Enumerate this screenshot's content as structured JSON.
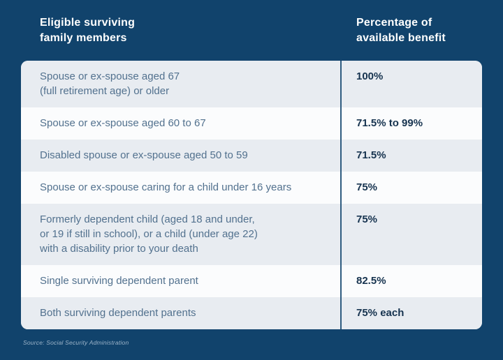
{
  "header": {
    "col1": "Eligible surviving\nfamily members",
    "col2": "Percentage of\navailable benefit"
  },
  "table": {
    "rows": [
      {
        "member": "Spouse or ex-spouse aged 67\n(full retirement age) or older",
        "benefit": "100%"
      },
      {
        "member": "Spouse or ex-spouse aged 60 to 67",
        "benefit": "71.5% to 99%"
      },
      {
        "member": "Disabled spouse or ex-spouse aged 50 to 59",
        "benefit": "71.5%"
      },
      {
        "member": "Spouse or ex-spouse caring for a child under 16 years",
        "benefit": "75%"
      },
      {
        "member": "Formerly dependent child (aged 18 and under,\nor 19 if still in school), or a child (under age 22)\nwith a disability prior to your death",
        "benefit": "75%"
      },
      {
        "member": "Single surviving dependent parent",
        "benefit": "82.5%"
      },
      {
        "member": "Both surviving dependent parents",
        "benefit": "75% each"
      }
    ]
  },
  "source": "Source: Social Security Administration",
  "colors": {
    "background_navy": "#11436C",
    "row_gray": "#E8ECF1",
    "row_white": "#FBFCFD",
    "column_divider": "#2F5C80",
    "member_text": "#52718E",
    "benefit_text": "#16334F",
    "header_text": "#FFFFFF",
    "source_text": "#9DB4C9"
  },
  "chart_data": {
    "type": "table",
    "title": "",
    "columns": [
      "Eligible surviving family members",
      "Percentage of available benefit"
    ],
    "rows": [
      [
        "Spouse or ex-spouse aged 67 (full retirement age) or older",
        "100%"
      ],
      [
        "Spouse or ex-spouse aged 60 to 67",
        "71.5% to 99%"
      ],
      [
        "Disabled spouse or ex-spouse aged 50 to 59",
        "71.5%"
      ],
      [
        "Spouse or ex-spouse caring for a child under 16 years",
        "75%"
      ],
      [
        "Formerly dependent child (aged 18 and under, or 19 if still in school), or a child (under age 22) with a disability prior to your death",
        "75%"
      ],
      [
        "Single surviving dependent parent",
        "82.5%"
      ],
      [
        "Both surviving dependent parents",
        "75% each"
      ]
    ],
    "source": "Source: Social Security Administration",
    "layout_hints": {
      "striped_rows": true,
      "stripe_pattern": "odd rows gray, even rows white",
      "column_divider": "vertical line between columns"
    }
  }
}
